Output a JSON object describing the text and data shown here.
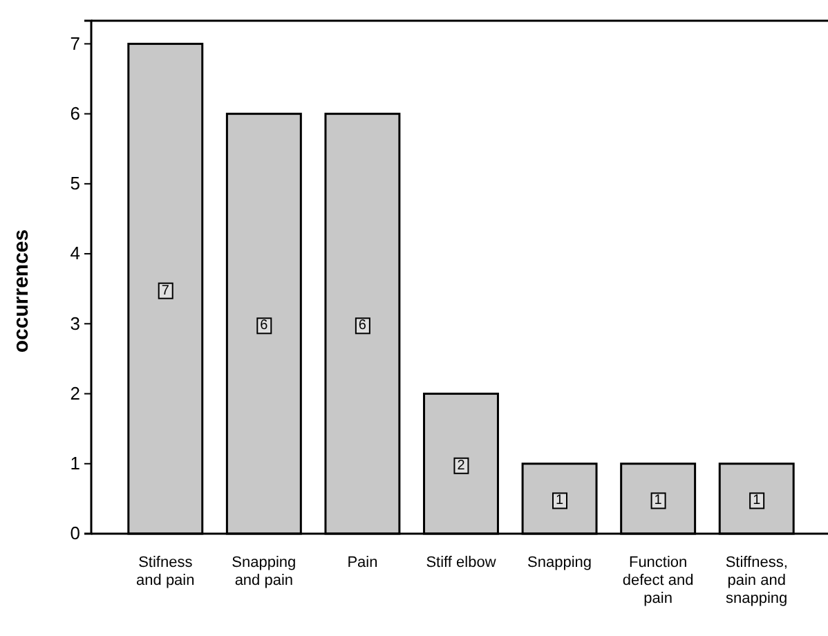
{
  "chart_data": {
    "type": "bar",
    "ylabel": "occurrences",
    "categories": [
      "Stifness and pain",
      "Snapping and pain",
      "Pain",
      "Stiff elbow",
      "Snapping",
      "Function defect and pain",
      "Stiffness, pain and snapping"
    ],
    "values": [
      7,
      6,
      6,
      2,
      1,
      1,
      1
    ],
    "color": "#c8c8c8",
    "ylim": [
      0,
      7.33
    ],
    "yticks": [
      0,
      1,
      2,
      3,
      4,
      5,
      6,
      7
    ],
    "data_labels": true
  }
}
